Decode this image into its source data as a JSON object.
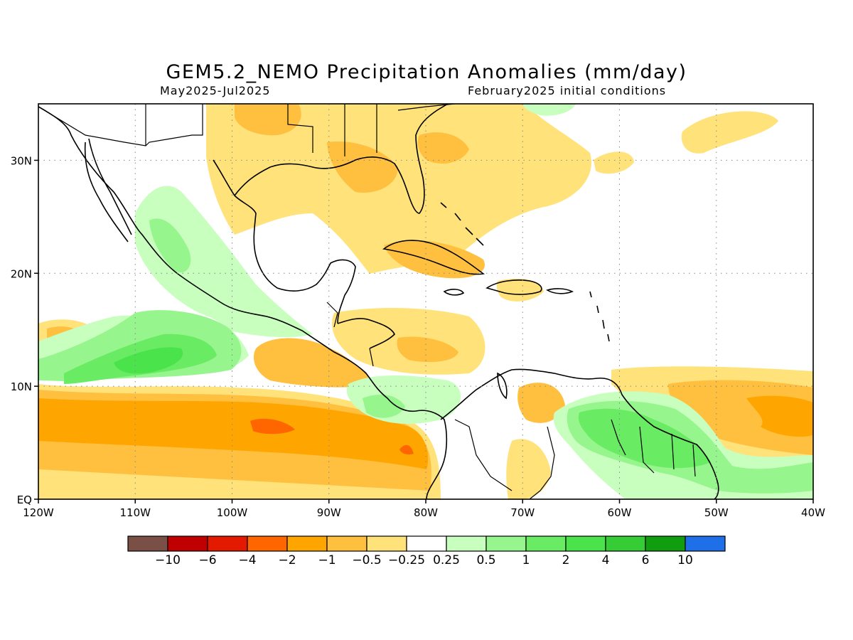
{
  "title": "GEM5.2_NEMO Precipitation Anomalies (mm/day)",
  "period": "May2025-Jul2025",
  "init": "February2025 initial conditions",
  "map": {
    "lon_range": [
      -120,
      -40
    ],
    "lat_range": [
      0,
      35
    ],
    "lon_ticks": [
      {
        "v": -120,
        "label": "120W"
      },
      {
        "v": -110,
        "label": "110W"
      },
      {
        "v": -100,
        "label": "100W"
      },
      {
        "v": -90,
        "label": "90W"
      },
      {
        "v": -80,
        "label": "80W"
      },
      {
        "v": -70,
        "label": "70W"
      },
      {
        "v": -60,
        "label": "60W"
      },
      {
        "v": -50,
        "label": "50W"
      },
      {
        "v": -40,
        "label": "40W"
      }
    ],
    "lat_ticks": [
      {
        "v": 0,
        "label": "EQ"
      },
      {
        "v": 10,
        "label": "10N"
      },
      {
        "v": 20,
        "label": "20N"
      },
      {
        "v": 30,
        "label": "30N"
      }
    ],
    "grid": true
  },
  "colorbar": {
    "colors": [
      "#7a4f46",
      "#c00000",
      "#e41a00",
      "#ff6600",
      "#ffa500",
      "#ffbf3f",
      "#ffe27a",
      "#ffffff",
      "#c8ffbe",
      "#96f58c",
      "#6aeb64",
      "#4be34b",
      "#35cc35",
      "#109e10",
      "#1f6fe8"
    ],
    "labels": [
      "-10",
      "-6",
      "-4",
      "-2",
      "-1",
      "-0.5",
      "-0.25",
      "0.25",
      "0.5",
      "1",
      "2",
      "4",
      "6",
      "10"
    ]
  }
}
